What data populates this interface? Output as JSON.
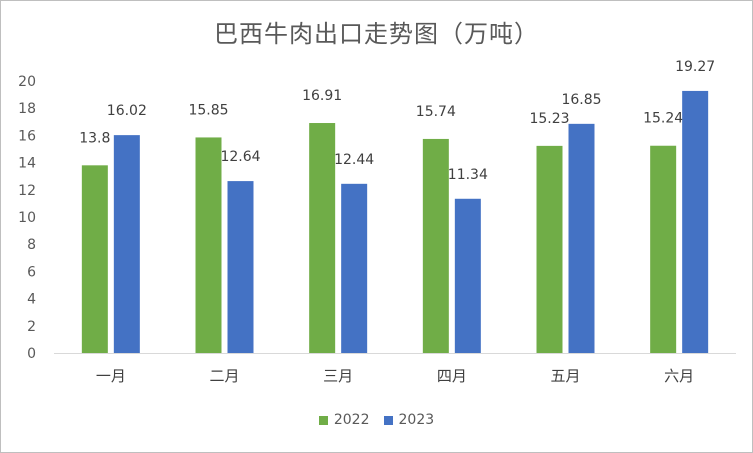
{
  "chart_data": {
    "type": "bar",
    "title": "巴西牛肉出口走势图（万吨）",
    "categories": [
      "一月",
      "二月",
      "三月",
      "四月",
      "五月",
      "六月"
    ],
    "series": [
      {
        "name": "2022",
        "color": "#70ad47",
        "values": [
          13.8,
          15.85,
          16.91,
          15.74,
          15.23,
          15.24
        ]
      },
      {
        "name": "2023",
        "color": "#4472c4",
        "values": [
          16.02,
          12.64,
          12.44,
          11.34,
          16.85,
          19.27
        ]
      }
    ],
    "ylim": [
      0,
      20
    ],
    "yticks": [
      0,
      2,
      4,
      6,
      8,
      10,
      12,
      14,
      16,
      18,
      20
    ],
    "grid": false,
    "legend_position": "bottom"
  }
}
